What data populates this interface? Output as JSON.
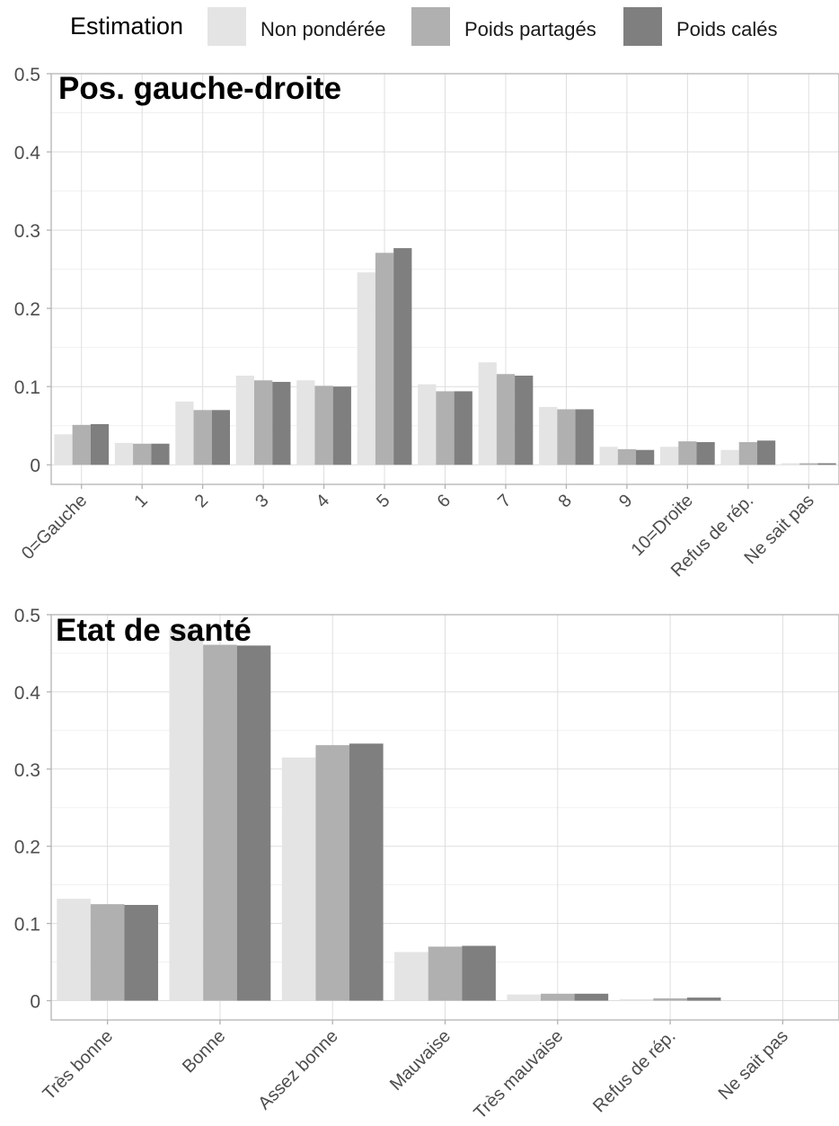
{
  "legend": {
    "title": "Estimation",
    "items": [
      {
        "label": "Non pondérée",
        "color": "#e4e4e4"
      },
      {
        "label": "Poids partagés",
        "color": "#b0b0b0"
      },
      {
        "label": "Poids calés",
        "color": "#7f7f7f"
      }
    ]
  },
  "chart_data": [
    {
      "type": "bar",
      "title": "Pos. gauche-droite",
      "categories": [
        "0=Gauche",
        "1",
        "2",
        "3",
        "4",
        "5",
        "6",
        "7",
        "8",
        "9",
        "10=Droite",
        "Refus de rép.",
        "Ne sait pas"
      ],
      "series": [
        {
          "name": "Non pondérée",
          "values": [
            0.039,
            0.028,
            0.081,
            0.114,
            0.108,
            0.246,
            0.103,
            0.131,
            0.074,
            0.023,
            0.023,
            0.019,
            0.002
          ]
        },
        {
          "name": "Poids partagés",
          "values": [
            0.051,
            0.027,
            0.07,
            0.108,
            0.101,
            0.271,
            0.094,
            0.116,
            0.071,
            0.02,
            0.03,
            0.029,
            0.002
          ]
        },
        {
          "name": "Poids calés",
          "values": [
            0.052,
            0.027,
            0.07,
            0.106,
            0.1,
            0.277,
            0.094,
            0.114,
            0.071,
            0.019,
            0.029,
            0.031,
            0.002
          ]
        }
      ],
      "yticks": [
        0,
        0.1,
        0.2,
        0.3,
        0.4,
        0.5
      ],
      "ytick_labels": [
        "0",
        "0.1",
        "0.2",
        "0.3",
        "0.4",
        "0.5"
      ],
      "ylim": [
        -0.025,
        0.5
      ],
      "grid": true,
      "legend_position": "top"
    },
    {
      "type": "bar",
      "title": "Etat de santé",
      "categories": [
        "Très bonne",
        "Bonne",
        "Assez bonne",
        "Mauvaise",
        "Très mauvaise",
        "Refus de rép.",
        "Ne sait pas"
      ],
      "series": [
        {
          "name": "Non pondérée",
          "values": [
            0.132,
            0.482,
            0.315,
            0.063,
            0.008,
            0.002,
            0.0
          ]
        },
        {
          "name": "Poids partagés",
          "values": [
            0.125,
            0.461,
            0.331,
            0.07,
            0.009,
            0.003,
            0.0
          ]
        },
        {
          "name": "Poids calés",
          "values": [
            0.124,
            0.46,
            0.333,
            0.071,
            0.009,
            0.004,
            0.0
          ]
        }
      ],
      "yticks": [
        0,
        0.1,
        0.2,
        0.3,
        0.4,
        0.5
      ],
      "ytick_labels": [
        "0",
        "0.1",
        "0.2",
        "0.3",
        "0.4",
        "0.5"
      ],
      "ylim": [
        -0.025,
        0.5
      ],
      "grid": true,
      "legend_position": "top"
    }
  ]
}
